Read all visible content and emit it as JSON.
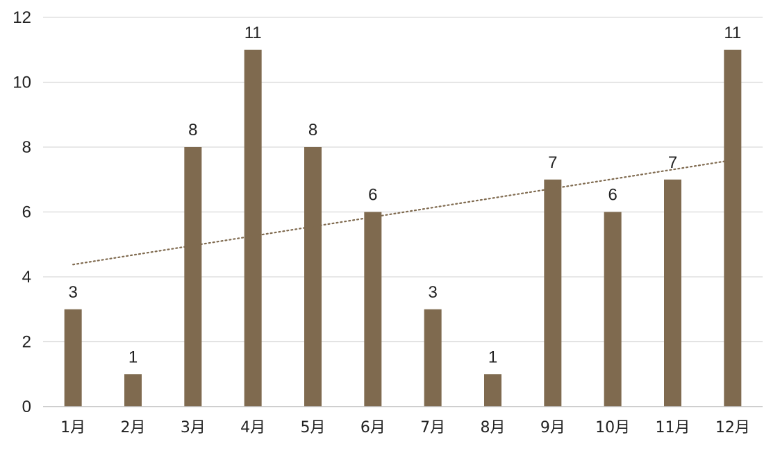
{
  "chart_data": {
    "type": "bar",
    "categories": [
      "1月",
      "2月",
      "3月",
      "4月",
      "5月",
      "6月",
      "7月",
      "8月",
      "9月",
      "10月",
      "11月",
      "12月"
    ],
    "values": [
      3,
      1,
      8,
      11,
      8,
      6,
      3,
      1,
      7,
      6,
      7,
      11
    ],
    "ylim": [
      0,
      12
    ],
    "yticks": [
      0,
      2,
      4,
      6,
      8,
      10,
      12
    ],
    "grid": true,
    "data_labels": true,
    "trendline": {
      "type": "linear",
      "style": "dotted",
      "start": 4.38,
      "end": 7.6
    },
    "colors": {
      "bar": "#7f6a4f",
      "trendline": "#7f6a4f",
      "grid": "#d9d9d9",
      "axis": "#bfbfbf"
    }
  }
}
